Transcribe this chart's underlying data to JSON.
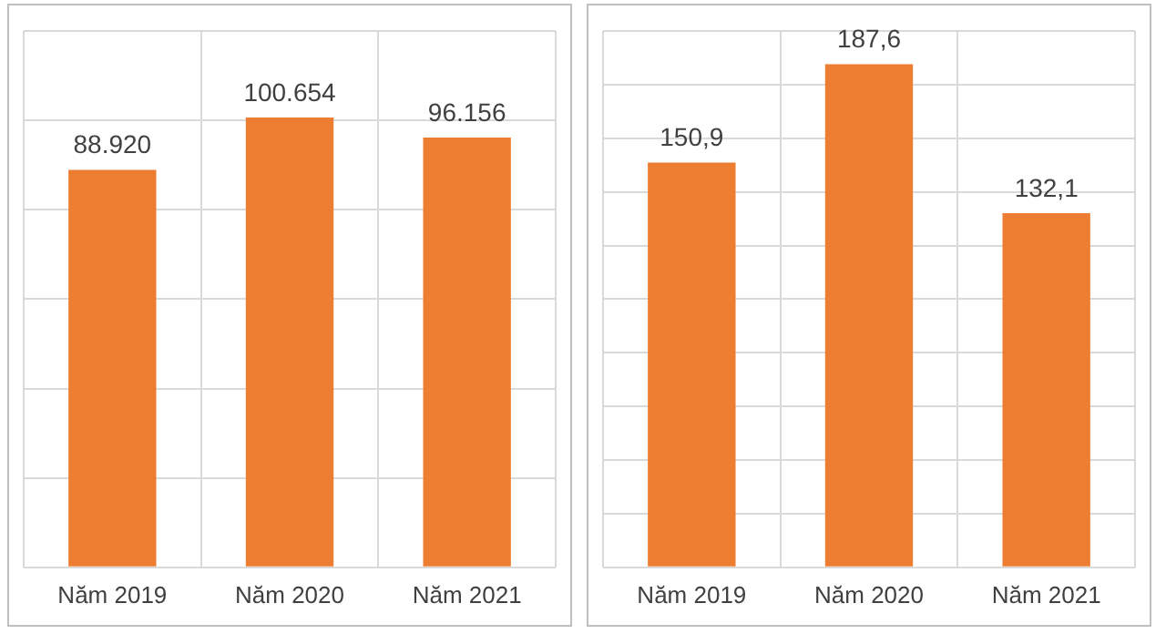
{
  "chart_data": [
    {
      "type": "bar",
      "categories": [
        "Năm 2019",
        "Năm 2020",
        "Năm 2021"
      ],
      "values": [
        88920,
        100654,
        96156
      ],
      "value_labels": [
        "88.920",
        "100.654",
        "96.156"
      ],
      "color": "#ed7d31",
      "grid": true,
      "tick_labels": "x"
    },
    {
      "type": "bar",
      "categories": [
        "Năm 2019",
        "Năm 2020",
        "Năm 2021"
      ],
      "values": [
        150.9,
        187.6,
        132.1
      ],
      "value_labels": [
        "150,9",
        "187,6",
        "132,1"
      ],
      "color": "#ed7d31",
      "grid": true,
      "tick_labels": "x"
    }
  ]
}
